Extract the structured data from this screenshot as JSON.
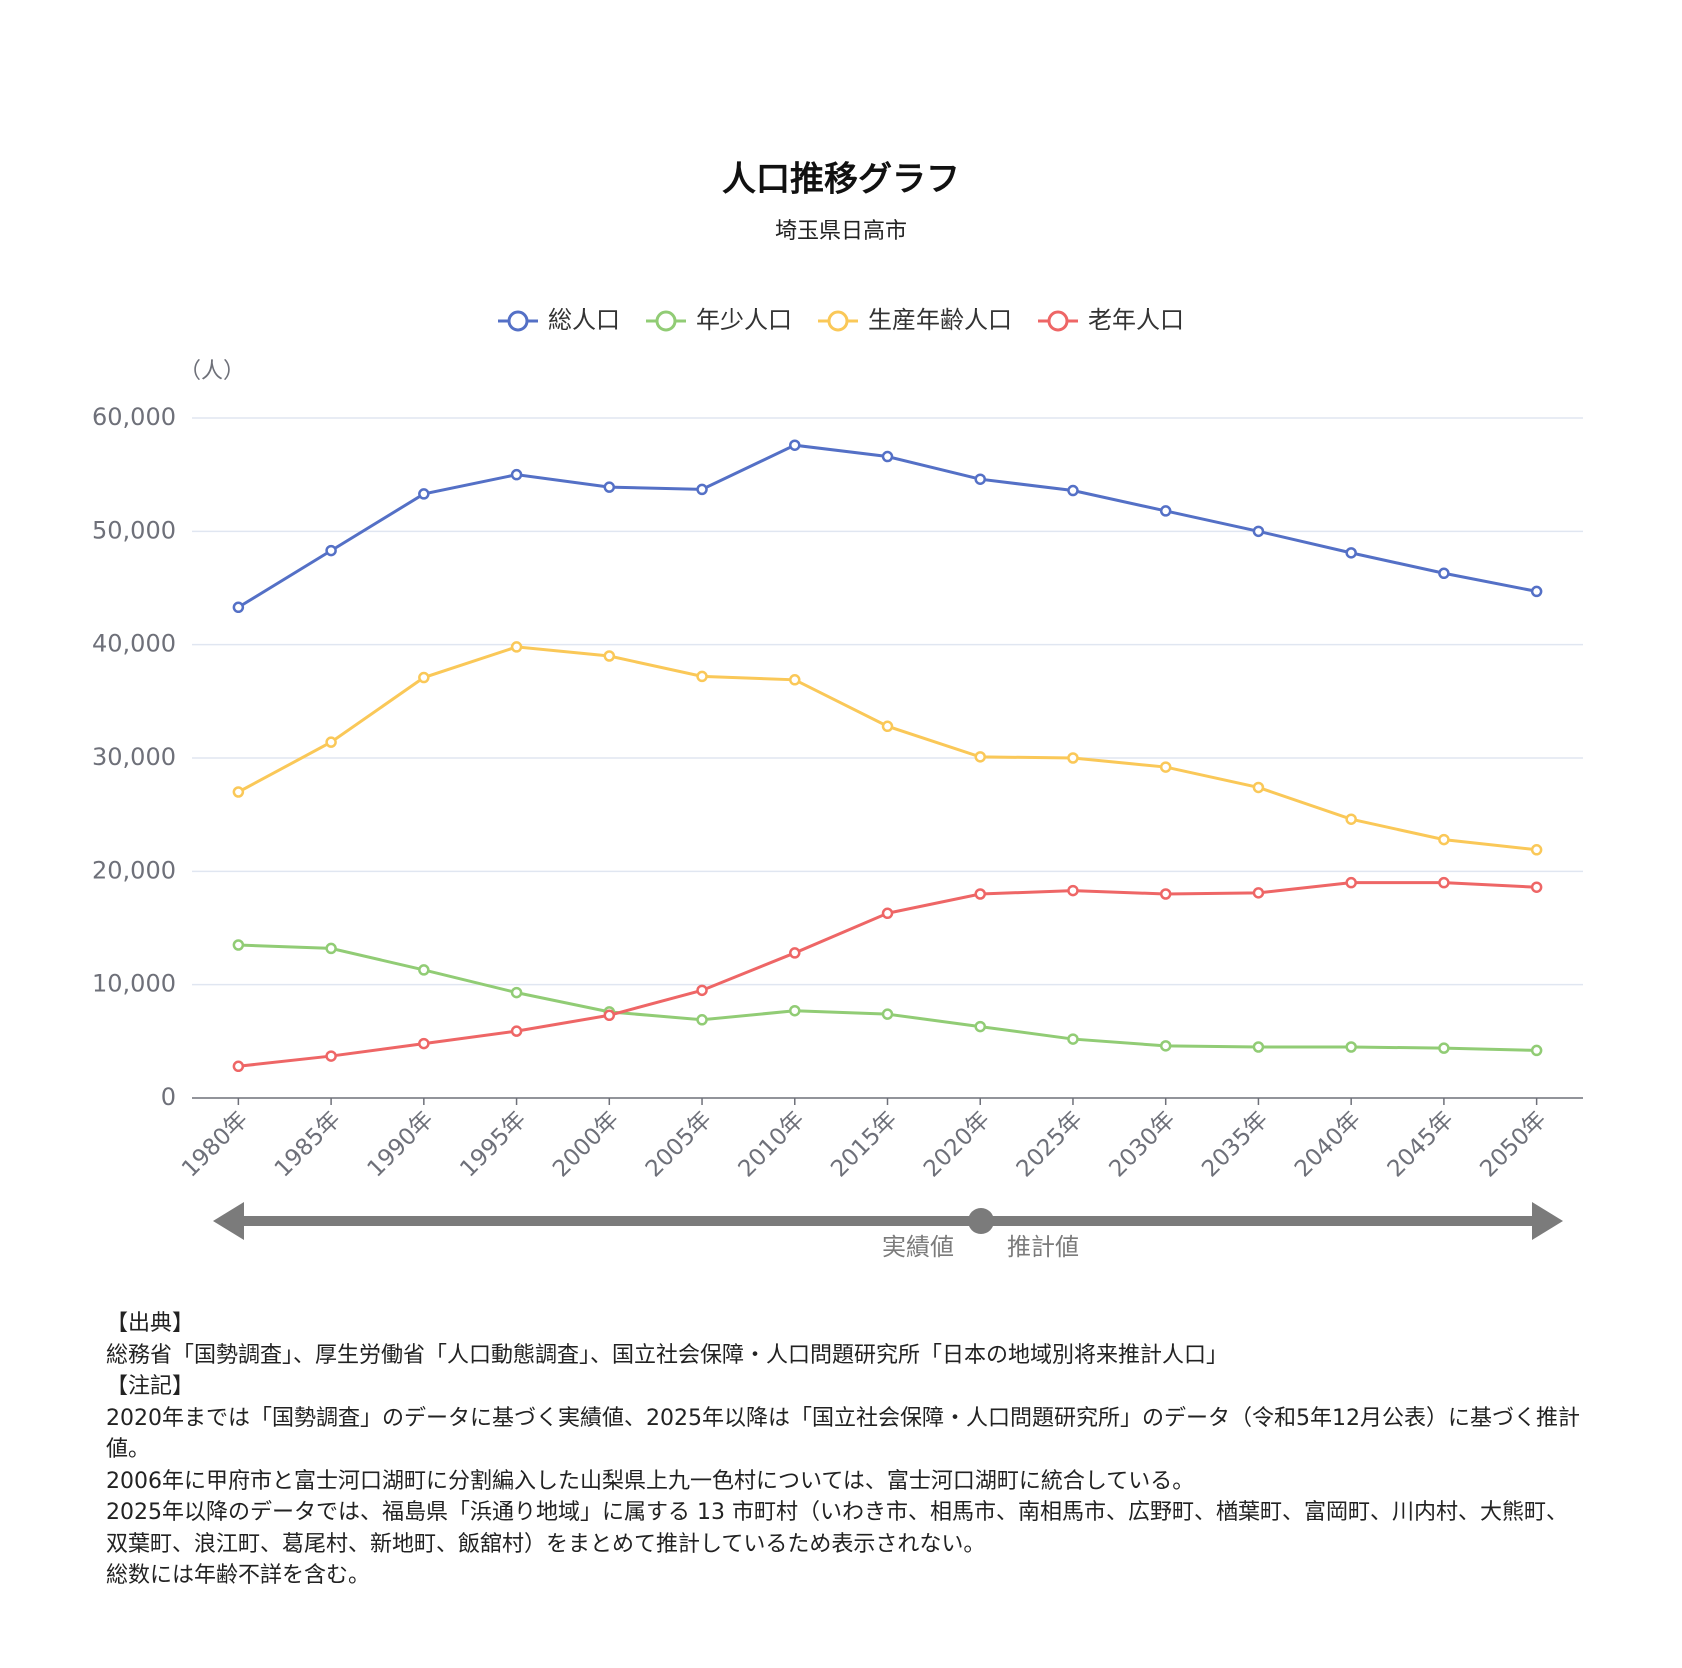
{
  "chart_data": {
    "type": "line",
    "title": "人口推移グラフ",
    "subtitle": "埼玉県日高市",
    "y_unit": "（人）",
    "categories": [
      "1980年",
      "1985年",
      "1990年",
      "1995年",
      "2000年",
      "2005年",
      "2010年",
      "2015年",
      "2020年",
      "2025年",
      "2030年",
      "2035年",
      "2040年",
      "2045年",
      "2050年"
    ],
    "series": [
      {
        "name": "総人口",
        "color": "#5470c6",
        "values": [
          43300,
          48300,
          53300,
          55000,
          53900,
          53700,
          57600,
          56600,
          54600,
          53600,
          51800,
          50000,
          48100,
          46300,
          44700
        ]
      },
      {
        "name": "年少人口",
        "color": "#91cc75",
        "values": [
          13500,
          13200,
          11300,
          9300,
          7600,
          6900,
          7700,
          7400,
          6300,
          5200,
          4600,
          4500,
          4500,
          4400,
          4200
        ]
      },
      {
        "name": "生産年齢人口",
        "color": "#fac858",
        "values": [
          27000,
          31400,
          37100,
          39800,
          39000,
          37200,
          36900,
          32800,
          30100,
          30000,
          29200,
          27400,
          24600,
          22800,
          21900
        ]
      },
      {
        "name": "老年人口",
        "color": "#ee6666",
        "values": [
          2800,
          3700,
          4800,
          5900,
          7300,
          9500,
          12800,
          16300,
          18000,
          18300,
          18000,
          18100,
          19000,
          19000,
          18600
        ]
      }
    ],
    "ylim": [
      0,
      60000
    ],
    "yticks": [
      0,
      {
        "value": 10000,
        "label": "10,000"
      },
      {
        "value": 20000,
        "label": "20,000"
      },
      {
        "value": 30000,
        "label": "30,000"
      },
      {
        "value": 40000,
        "label": "40,000"
      },
      {
        "value": 50000,
        "label": "50,000"
      },
      {
        "value": 60000,
        "label": "60,000"
      }
    ],
    "grid": true,
    "legend": "top",
    "annotations": [
      "実績値",
      "推計値"
    ]
  },
  "notes": {
    "source_heading": "【出典】",
    "source": "総務省「国勢調査」、厚生労働省「人口動態調査」、国立社会保障・人口問題研究所「日本の地域別将来推計人口」",
    "notes_heading": "【注記】",
    "lines": [
      "2020年までは「国勢調査」のデータに基づく実績値、2025年以降は「国立社会保障・人口問題研究所」のデータ（令和5年12月公表）に基づく推計値。",
      "2006年に甲府市と富士河口湖町に分割編入した山梨県上九一色村については、富士河口湖町に統合している。",
      "2025年以降のデータでは、福島県「浜通り地域」に属する 13 市町村（いわき市、相馬市、南相馬市、広野町、楢葉町、富岡町、川内村、大熊町、双葉町、浪江町、葛尾村、新地町、飯舘村）をまとめて推計しているため表示されない。",
      "総数には年齢不詳を含む。"
    ]
  }
}
